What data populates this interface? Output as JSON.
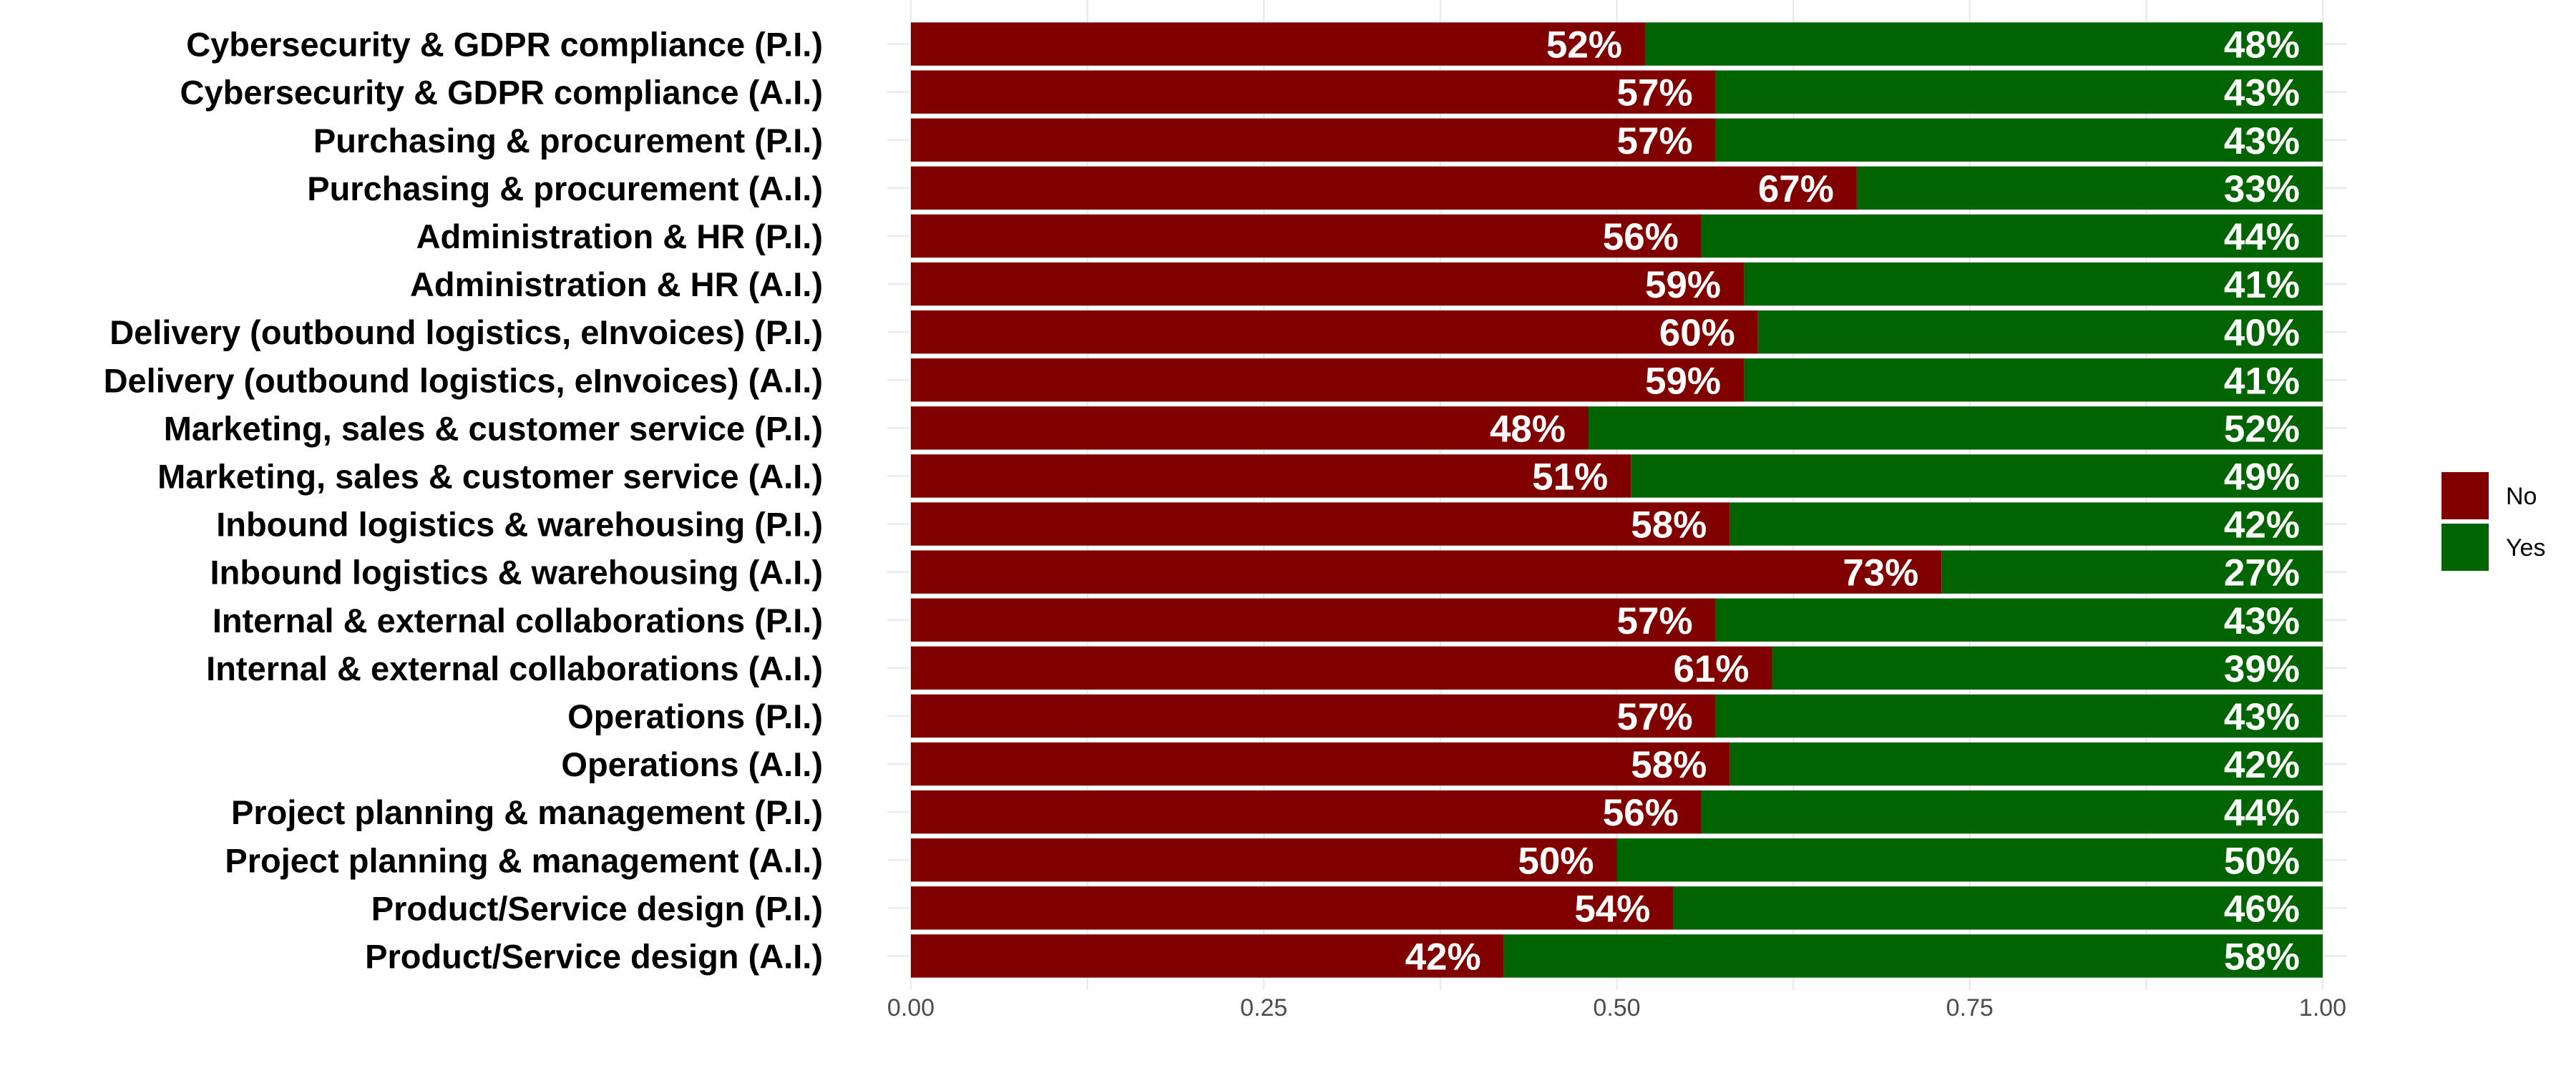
{
  "chart_data": {
    "type": "bar",
    "orientation": "horizontal",
    "stacked": true,
    "categories": [
      "Cybersecurity & GDPR compliance (P.I.)",
      "Cybersecurity & GDPR compliance (A.I.)",
      "Purchasing & procurement (P.I.)",
      "Purchasing & procurement (A.I.)",
      "Administration & HR (P.I.)",
      "Administration & HR (A.I.)",
      "Delivery (outbound logistics, eInvoices) (P.I.)",
      "Delivery (outbound logistics, eInvoices) (A.I.)",
      "Marketing, sales & customer service (P.I.)",
      "Marketing, sales & customer service (A.I.)",
      "Inbound logistics & warehousing (P.I.)",
      "Inbound logistics & warehousing (A.I.)",
      "Internal & external collaborations (P.I.)",
      "Internal & external collaborations (A.I.)",
      "Operations (P.I.)",
      "Operations (A.I.)",
      "Project planning & management (P.I.)",
      "Project planning & management (A.I.)",
      "Product/Service design (P.I.)",
      "Product/Service design (A.I.)"
    ],
    "series": [
      {
        "name": "No",
        "color": "#800000",
        "values": [
          0.52,
          0.57,
          0.57,
          0.67,
          0.56,
          0.59,
          0.6,
          0.59,
          0.48,
          0.51,
          0.58,
          0.73,
          0.57,
          0.61,
          0.57,
          0.58,
          0.56,
          0.5,
          0.54,
          0.42
        ],
        "labels": [
          "52%",
          "57%",
          "57%",
          "67%",
          "56%",
          "59%",
          "60%",
          "59%",
          "48%",
          "51%",
          "58%",
          "73%",
          "57%",
          "61%",
          "57%",
          "58%",
          "56%",
          "50%",
          "54%",
          "42%"
        ]
      },
      {
        "name": "Yes",
        "color": "#006400",
        "values": [
          0.48,
          0.43,
          0.43,
          0.33,
          0.44,
          0.41,
          0.4,
          0.41,
          0.52,
          0.49,
          0.42,
          0.27,
          0.43,
          0.39,
          0.43,
          0.42,
          0.44,
          0.5,
          0.46,
          0.58
        ],
        "labels": [
          "48%",
          "43%",
          "43%",
          "33%",
          "44%",
          "41%",
          "40%",
          "41%",
          "52%",
          "49%",
          "42%",
          "27%",
          "43%",
          "39%",
          "43%",
          "42%",
          "44%",
          "50%",
          "46%",
          "58%"
        ]
      }
    ],
    "xlim": [
      0,
      1
    ],
    "x_ticks": [
      0,
      0.25,
      0.5,
      0.75,
      1
    ],
    "x_tick_labels": [
      "0.00",
      "0.25",
      "0.50",
      "0.75",
      "1.00"
    ],
    "title": "",
    "xlabel": "",
    "ylabel": "",
    "grid": true,
    "legend_position": "right"
  }
}
